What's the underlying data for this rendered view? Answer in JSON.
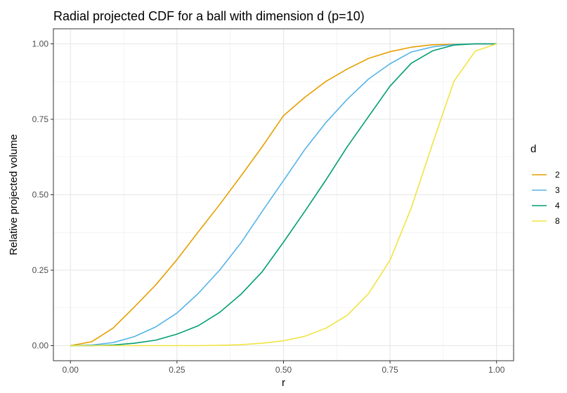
{
  "chart_data": {
    "type": "line",
    "title": "Radial projected CDF for a ball with dimension d (p=10)",
    "xlabel": "r",
    "ylabel": "Relative projected volume",
    "xlim": [
      -0.04,
      1.04
    ],
    "ylim": [
      -0.05,
      1.05
    ],
    "x_ticks": [
      0.0,
      0.25,
      0.5,
      0.75,
      1.0
    ],
    "x_tick_labels": [
      "0.00",
      "0.25",
      "0.50",
      "0.75",
      "1.00"
    ],
    "y_ticks": [
      0.0,
      0.25,
      0.5,
      0.75,
      1.0
    ],
    "y_tick_labels": [
      "0.00",
      "0.25",
      "0.50",
      "0.75",
      "1.00"
    ],
    "grid": true,
    "panel_border": true,
    "legend": {
      "title": "d",
      "position": "right"
    },
    "x": [
      0.0,
      0.05,
      0.1,
      0.15,
      0.2,
      0.25,
      0.3,
      0.35,
      0.4,
      0.45,
      0.5,
      0.55,
      0.6,
      0.65,
      0.7,
      0.75,
      0.8,
      0.85,
      0.9,
      0.95,
      1.0
    ],
    "series": [
      {
        "name": "2",
        "color": "#E69F00",
        "values": [
          0.0,
          0.013,
          0.058,
          0.128,
          0.201,
          0.285,
          0.377,
          0.467,
          0.562,
          0.659,
          0.762,
          0.823,
          0.876,
          0.917,
          0.952,
          0.974,
          0.989,
          0.997,
          0.999,
          1.0,
          1.0
        ]
      },
      {
        "name": "3",
        "color": "#56B4E9",
        "values": [
          0.0,
          0.002,
          0.01,
          0.03,
          0.062,
          0.108,
          0.173,
          0.25,
          0.34,
          0.445,
          0.547,
          0.65,
          0.74,
          0.817,
          0.884,
          0.934,
          0.973,
          0.99,
          0.998,
          1.0,
          1.0
        ]
      },
      {
        "name": "4",
        "color": "#009E73",
        "values": [
          0.0,
          0.0,
          0.002,
          0.008,
          0.018,
          0.038,
          0.066,
          0.11,
          0.17,
          0.245,
          0.343,
          0.445,
          0.55,
          0.66,
          0.76,
          0.86,
          0.936,
          0.977,
          0.996,
          1.0,
          1.0
        ]
      },
      {
        "name": "8",
        "color": "#F0E442",
        "values": [
          0.0,
          0.0,
          0.0,
          0.0,
          0.0,
          0.0,
          0.0,
          0.001,
          0.003,
          0.008,
          0.016,
          0.031,
          0.058,
          0.101,
          0.173,
          0.283,
          0.457,
          0.67,
          0.876,
          0.976,
          1.0
        ]
      }
    ]
  }
}
